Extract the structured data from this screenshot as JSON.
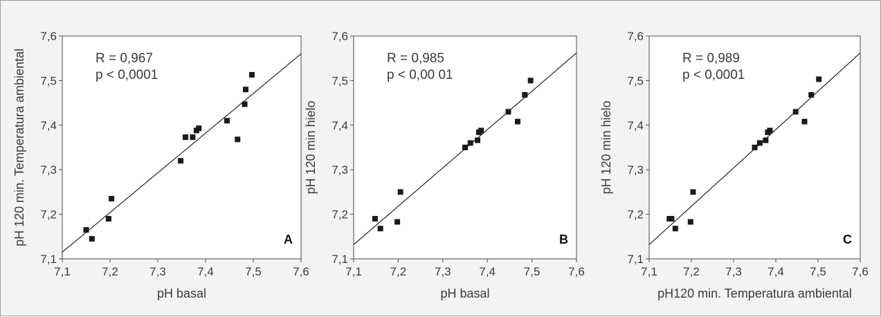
{
  "chart_data": [
    {
      "type": "scatter",
      "panel": "A",
      "xlabel": "pH basal",
      "ylabel": "pH 120 min. Temperatura ambiental",
      "stat_r": "R = 0,967",
      "stat_p": "p < 0,0001",
      "xlim": [
        7.1,
        7.6
      ],
      "ylim": [
        7.1,
        7.6
      ],
      "x_ticks": [
        "7,1",
        "7,2",
        "7,3",
        "7,4",
        "7,5",
        "7,6"
      ],
      "y_ticks": [
        "7,1",
        "7,2",
        "7,3",
        "7,4",
        "7,5",
        "7,6"
      ],
      "points": [
        [
          7.15,
          7.165
        ],
        [
          7.162,
          7.145
        ],
        [
          7.197,
          7.19
        ],
        [
          7.203,
          7.235
        ],
        [
          7.348,
          7.32
        ],
        [
          7.358,
          7.373
        ],
        [
          7.373,
          7.373
        ],
        [
          7.381,
          7.388
        ],
        [
          7.386,
          7.393
        ],
        [
          7.445,
          7.41
        ],
        [
          7.467,
          7.368
        ],
        [
          7.482,
          7.447
        ],
        [
          7.484,
          7.48
        ],
        [
          7.497,
          7.513
        ]
      ],
      "fit_line": [
        [
          7.1,
          7.115
        ],
        [
          7.6,
          7.56
        ]
      ]
    },
    {
      "type": "scatter",
      "panel": "B",
      "xlabel": "pH basal",
      "ylabel": "pH 120 min hielo",
      "stat_r": "R = 0,985",
      "stat_p": "p < 0,00 01",
      "xlim": [
        7.1,
        7.6
      ],
      "ylim": [
        7.1,
        7.6
      ],
      "x_ticks": [
        "7,1",
        "7,2",
        "7,3",
        "7,4",
        "7,5",
        "7,6"
      ],
      "y_ticks": [
        "7,1",
        "7,2",
        "7,3",
        "7,4",
        "7,5",
        "7,6"
      ],
      "points": [
        [
          7.148,
          7.19
        ],
        [
          7.16,
          7.168
        ],
        [
          7.198,
          7.183
        ],
        [
          7.205,
          7.25
        ],
        [
          7.35,
          7.35
        ],
        [
          7.362,
          7.36
        ],
        [
          7.378,
          7.366
        ],
        [
          7.381,
          7.384
        ],
        [
          7.386,
          7.388
        ],
        [
          7.447,
          7.43
        ],
        [
          7.468,
          7.408
        ],
        [
          7.484,
          7.468
        ],
        [
          7.497,
          7.5
        ]
      ],
      "fit_line": [
        [
          7.1,
          7.132
        ],
        [
          7.6,
          7.562
        ]
      ]
    },
    {
      "type": "scatter",
      "panel": "C",
      "xlabel": "pH120 min. Temperatura ambiental",
      "ylabel": "pH 120 min hielo",
      "stat_r": "R = 0,989",
      "stat_p": "p < 0,0001",
      "xlim": [
        7.1,
        7.6
      ],
      "ylim": [
        7.1,
        7.6
      ],
      "x_ticks": [
        "7,1",
        "7,2",
        "7,3",
        "7,4",
        "7,5",
        "7,6"
      ],
      "y_ticks": [
        "7,1",
        "7,2",
        "7,3",
        "7,4",
        "7,5",
        "7,6"
      ],
      "points": [
        [
          7.148,
          7.19
        ],
        [
          7.153,
          7.19
        ],
        [
          7.162,
          7.168
        ],
        [
          7.198,
          7.183
        ],
        [
          7.204,
          7.25
        ],
        [
          7.35,
          7.35
        ],
        [
          7.362,
          7.36
        ],
        [
          7.376,
          7.366
        ],
        [
          7.381,
          7.384
        ],
        [
          7.386,
          7.388
        ],
        [
          7.447,
          7.43
        ],
        [
          7.468,
          7.408
        ],
        [
          7.484,
          7.468
        ],
        [
          7.502,
          7.503
        ]
      ],
      "fit_line": [
        [
          7.1,
          7.132
        ],
        [
          7.6,
          7.562
        ]
      ]
    }
  ]
}
